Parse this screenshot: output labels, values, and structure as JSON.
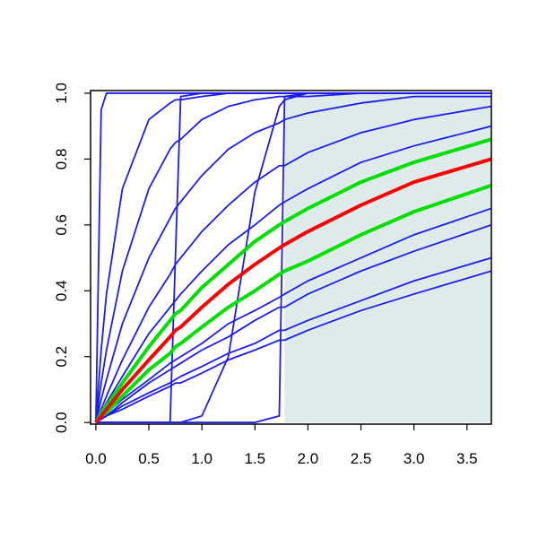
{
  "chart_data": {
    "type": "line",
    "x": [
      0,
      0.05,
      0.1,
      0.25,
      0.5,
      0.7,
      0.75,
      0.8,
      1,
      1.25,
      1.5,
      1.73,
      1.78,
      2,
      2.5,
      3,
      3.73
    ],
    "series": [
      {
        "color": "#1c1cf0",
        "values": [
          0,
          0.95,
          1,
          1,
          1,
          1,
          1,
          1,
          1,
          1,
          1,
          1,
          1,
          1,
          1,
          1,
          1
        ]
      },
      {
        "color": "#1c1cf0",
        "values": [
          0,
          0.22,
          0.39,
          0.71,
          0.92,
          0.97,
          0.98,
          0.98,
          0.99,
          1,
          1,
          1,
          1,
          1,
          1,
          1,
          1
        ]
      },
      {
        "color": "#1c1cf0",
        "values": [
          0,
          0.12,
          0.22,
          0.46,
          0.71,
          0.83,
          0.85,
          0.86,
          0.92,
          0.96,
          0.98,
          0.99,
          0.99,
          0.99,
          1,
          1,
          1
        ]
      },
      {
        "color": "#1c1cf0",
        "values": [
          0,
          0.07,
          0.13,
          0.3,
          0.5,
          0.62,
          0.65,
          0.67,
          0.75,
          0.83,
          0.88,
          0.91,
          0.92,
          0.94,
          0.97,
          0.99,
          0.99
        ]
      },
      {
        "color": "#1c1cf0",
        "values": [
          0,
          0,
          0,
          0,
          0,
          0,
          0.5,
          0.99,
          1,
          1,
          1,
          1,
          1,
          1,
          1,
          1,
          1
        ]
      },
      {
        "color": "#1c1cf0",
        "values": [
          0,
          0,
          0,
          0,
          0,
          0,
          0,
          0,
          0,
          0,
          0,
          0.02,
          0.99,
          1,
          1,
          1,
          1
        ]
      },
      {
        "color": "#1c1cf0",
        "values": [
          0,
          0,
          0,
          0,
          0,
          0,
          0,
          0,
          0.02,
          0.2,
          0.7,
          0.96,
          0.98,
          1,
          1,
          1,
          1
        ]
      },
      {
        "color": "#1c1cf0",
        "values": [
          0,
          0.04,
          0.08,
          0.19,
          0.35,
          0.45,
          0.48,
          0.5,
          0.58,
          0.66,
          0.73,
          0.78,
          0.78,
          0.82,
          0.88,
          0.92,
          0.96
        ]
      },
      {
        "color": "#1c1cf0",
        "values": [
          0,
          0.03,
          0.06,
          0.14,
          0.27,
          0.35,
          0.37,
          0.39,
          0.46,
          0.54,
          0.6,
          0.66,
          0.67,
          0.71,
          0.79,
          0.84,
          0.9
        ]
      },
      {
        "color": "#1c1cf0",
        "values": [
          0,
          0.01,
          0.03,
          0.07,
          0.13,
          0.18,
          0.19,
          0.2,
          0.24,
          0.3,
          0.34,
          0.38,
          0.39,
          0.43,
          0.5,
          0.57,
          0.65
        ]
      },
      {
        "color": "#1c1cf0",
        "values": [
          0,
          0.01,
          0.02,
          0.06,
          0.12,
          0.16,
          0.17,
          0.18,
          0.22,
          0.26,
          0.31,
          0.35,
          0.35,
          0.39,
          0.46,
          0.52,
          0.6
        ]
      },
      {
        "color": "#1c1cf0",
        "values": [
          0,
          0.01,
          0.02,
          0.05,
          0.09,
          0.12,
          0.13,
          0.14,
          0.17,
          0.21,
          0.24,
          0.28,
          0.28,
          0.31,
          0.37,
          0.43,
          0.5
        ]
      },
      {
        "color": "#1c1cf0",
        "values": [
          0,
          0.01,
          0.02,
          0.04,
          0.08,
          0.11,
          0.12,
          0.12,
          0.15,
          0.19,
          0.22,
          0.25,
          0.25,
          0.28,
          0.34,
          0.39,
          0.46
        ]
      },
      {
        "color": "#00e000",
        "values": [
          0,
          0.03,
          0.05,
          0.12,
          0.23,
          0.31,
          0.33,
          0.34,
          0.41,
          0.48,
          0.55,
          0.6,
          0.61,
          0.65,
          0.73,
          0.79,
          0.86
        ]
      },
      {
        "color": "#00e000",
        "values": [
          0,
          0.02,
          0.03,
          0.08,
          0.16,
          0.21,
          0.23,
          0.24,
          0.29,
          0.35,
          0.4,
          0.45,
          0.46,
          0.49,
          0.57,
          0.64,
          0.72
        ]
      },
      {
        "color": "#ff0000",
        "values": [
          0,
          0.02,
          0.04,
          0.1,
          0.19,
          0.26,
          0.28,
          0.29,
          0.35,
          0.42,
          0.48,
          0.53,
          0.54,
          0.58,
          0.66,
          0.73,
          0.8
        ]
      }
    ],
    "shaded_region": {
      "x": [
        1.78,
        3.73
      ],
      "y": [
        0,
        1
      ],
      "color": "#dfeaea"
    },
    "xlim": [
      -0.05,
      3.73
    ],
    "ylim": [
      -0.005,
      1.008
    ],
    "xticks": [
      {
        "value": 0,
        "label": "0.0"
      },
      {
        "value": 0.5,
        "label": "0.5"
      },
      {
        "value": 1,
        "label": "1.0"
      },
      {
        "value": 1.5,
        "label": "1.5"
      },
      {
        "value": 2,
        "label": "2.0"
      },
      {
        "value": 2.5,
        "label": "2.5"
      },
      {
        "value": 3,
        "label": "3.0"
      },
      {
        "value": 3.5,
        "label": "3.5"
      }
    ],
    "yticks": [
      {
        "value": 0,
        "label": "0.0"
      },
      {
        "value": 0.2,
        "label": "0.2"
      },
      {
        "value": 0.4,
        "label": "0.4"
      },
      {
        "value": 0.6,
        "label": "0.6"
      },
      {
        "value": 0.8,
        "label": "0.8"
      },
      {
        "value": 1,
        "label": "1.0"
      }
    ]
  }
}
